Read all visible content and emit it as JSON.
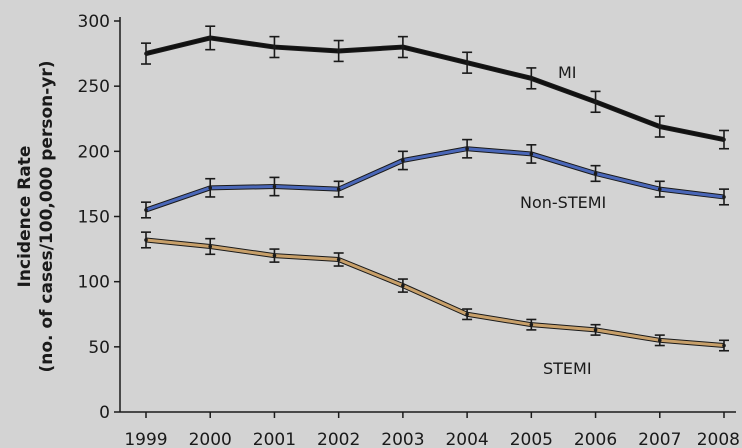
{
  "chart_data": {
    "type": "line",
    "title": "",
    "xlabel": "",
    "ylabel": [
      "Incidence Rate",
      "(no. of cases/100,000 person-yr)"
    ],
    "x": [
      "1999",
      "2000",
      "2001",
      "2002",
      "2003",
      "2004",
      "2005",
      "2006",
      "2007",
      "2008"
    ],
    "ylim": [
      0,
      300
    ],
    "yticks": [
      0,
      50,
      100,
      150,
      200,
      250,
      300
    ],
    "grid": false,
    "legend": "none (series labelled directly on the lines)",
    "background_color": "#d3d3d3",
    "series": [
      {
        "name": "MI",
        "color": "#111111",
        "values": [
          275,
          287,
          280,
          277,
          280,
          268,
          256,
          238,
          219,
          209
        ],
        "error": [
          8,
          9,
          8,
          8,
          8,
          8,
          8,
          8,
          8,
          7
        ]
      },
      {
        "name": "Non-STEMI",
        "color": "#4a67b8",
        "values": [
          155,
          172,
          173,
          171,
          193,
          202,
          198,
          183,
          171,
          165
        ],
        "error": [
          6,
          7,
          7,
          6,
          7,
          7,
          7,
          6,
          6,
          6
        ]
      },
      {
        "name": "STEMI",
        "color": "#c8a06a",
        "values": [
          132,
          127,
          120,
          117,
          97,
          75,
          67,
          63,
          55,
          51
        ],
        "error": [
          6,
          6,
          5,
          5,
          5,
          4,
          4,
          4,
          4,
          4
        ]
      }
    ]
  }
}
